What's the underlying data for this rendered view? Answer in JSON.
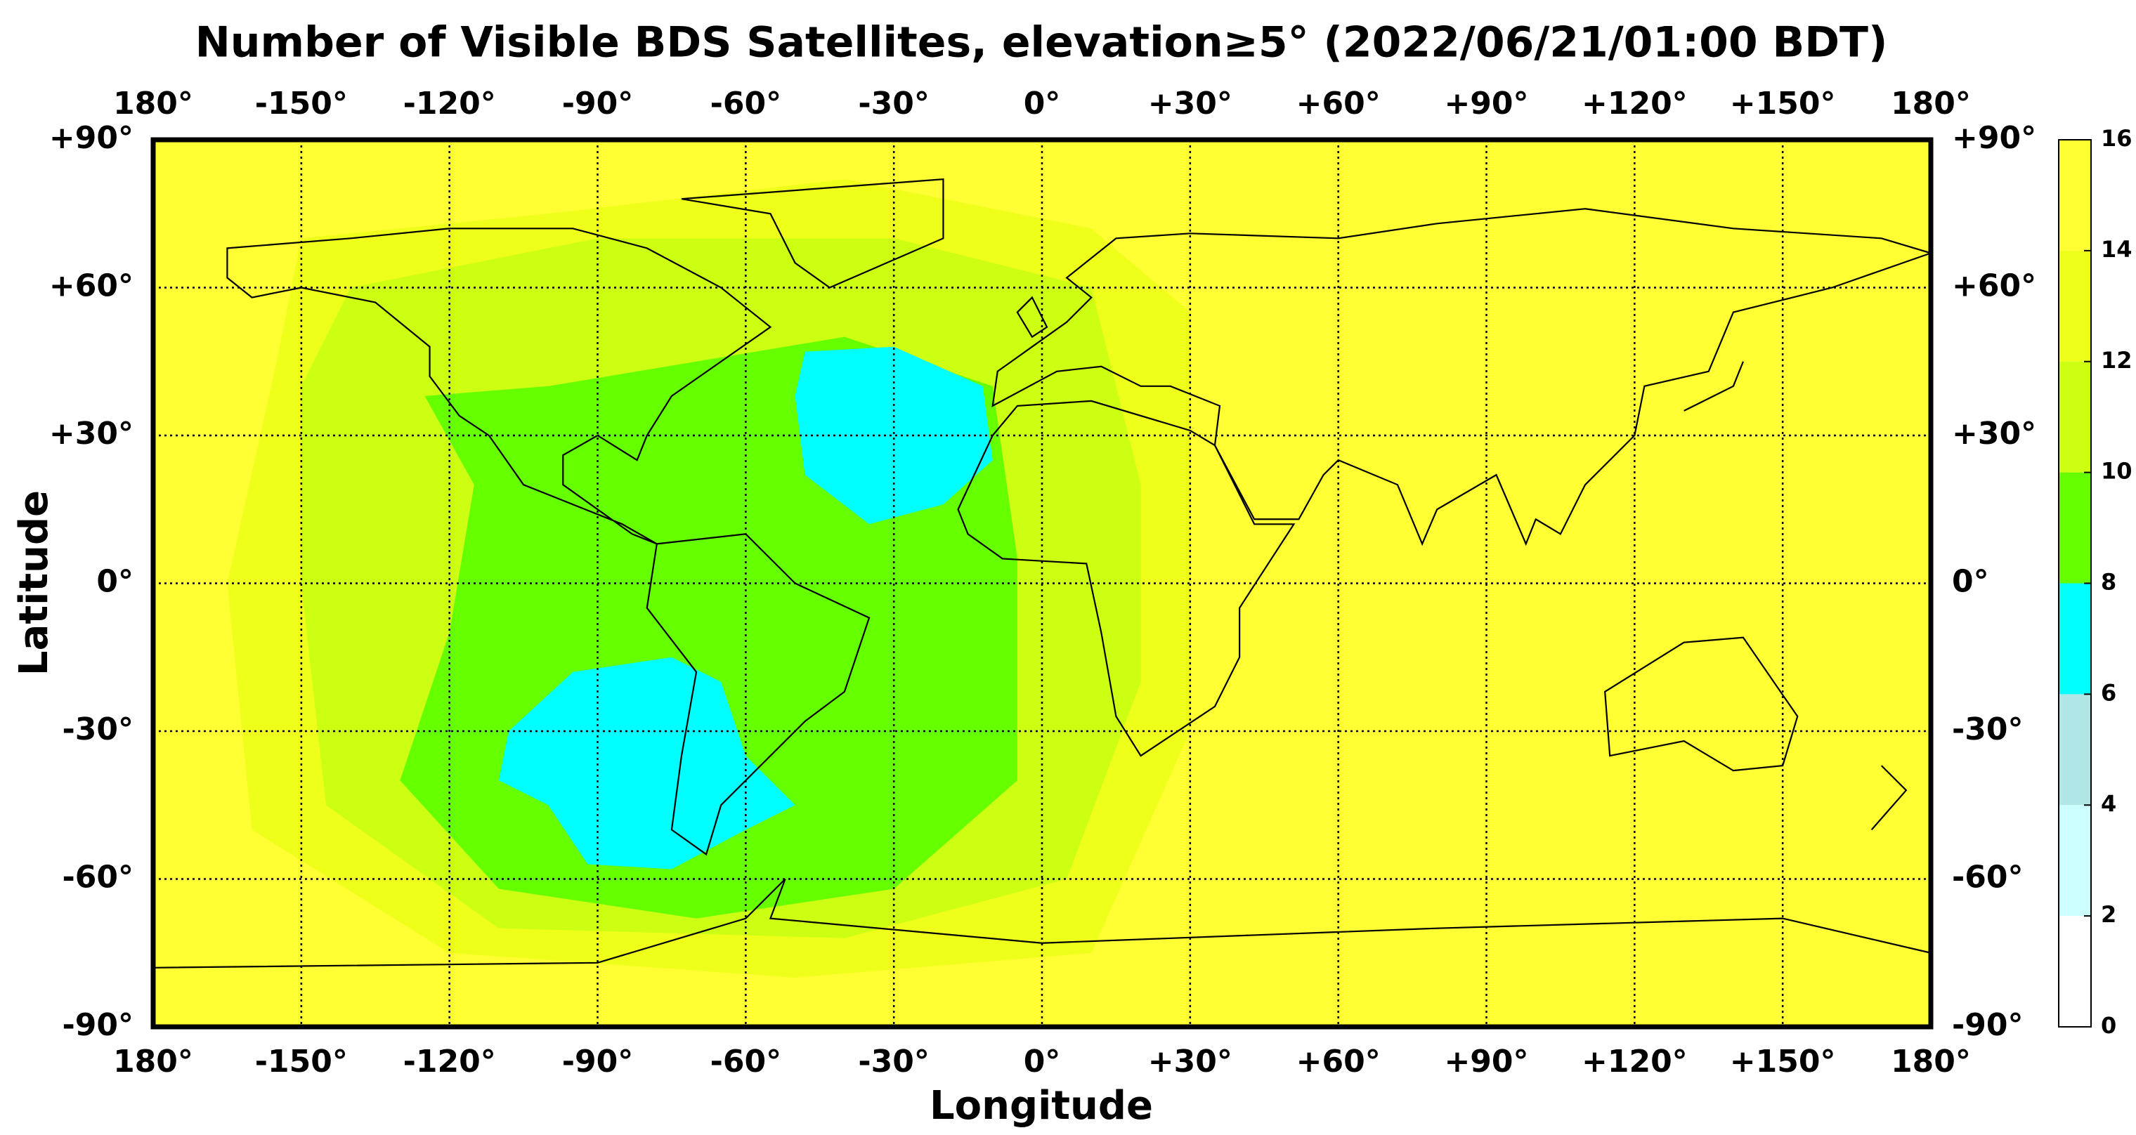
{
  "chart_data": {
    "type": "map",
    "title": "Number of Visible BDS Satellites, elevation≥5° (2022/06/21/01:00 BDT)",
    "x_label": "Longitude",
    "y_label": "Latitude",
    "xlim": [
      -180,
      180
    ],
    "ylim": [
      -90,
      90
    ],
    "xticks": [
      {
        "value": -180,
        "label": "180°"
      },
      {
        "value": -150,
        "label": "-150°"
      },
      {
        "value": -120,
        "label": "-120°"
      },
      {
        "value": -90,
        "label": "-90°"
      },
      {
        "value": -60,
        "label": "-60°"
      },
      {
        "value": -30,
        "label": "-30°"
      },
      {
        "value": 0,
        "label": "0°"
      },
      {
        "value": 30,
        "label": "+30°"
      },
      {
        "value": 60,
        "label": "+60°"
      },
      {
        "value": 90,
        "label": "+90°"
      },
      {
        "value": 120,
        "label": "+120°"
      },
      {
        "value": 150,
        "label": "+150°"
      },
      {
        "value": 180,
        "label": "180°"
      }
    ],
    "yticks": [
      {
        "value": 90,
        "label": "+90°"
      },
      {
        "value": 60,
        "label": "+60°"
      },
      {
        "value": 30,
        "label": "+30°"
      },
      {
        "value": 0,
        "label": "0°"
      },
      {
        "value": -30,
        "label": "-30°"
      },
      {
        "value": -60,
        "label": "-60°"
      },
      {
        "value": -90,
        "label": "-90°"
      }
    ],
    "grid": true,
    "colorbar": {
      "ticks": [
        0,
        2,
        4,
        6,
        8,
        10,
        12,
        14,
        16
      ],
      "colors": [
        "#ffffff",
        "#ccffff",
        "#b0e6e6",
        "#00ffff",
        "#66ff00",
        "#ccff11",
        "#eeff1a",
        "#ffff33"
      ]
    },
    "zones": [
      {
        "value": 15,
        "lon": [
          -180,
          180,
          180,
          -180
        ],
        "lat": [
          90,
          90,
          -90,
          -90
        ]
      },
      {
        "value": 13,
        "lon": [
          -150,
          -100,
          -40,
          10,
          30,
          30,
          10,
          -50,
          -120,
          -160,
          -165,
          -155
        ],
        "lat": [
          70,
          75,
          82,
          72,
          55,
          -30,
          -75,
          -80,
          -75,
          -50,
          0,
          45
        ]
      },
      {
        "value": 11,
        "lon": [
          -140,
          -90,
          -30,
          10,
          20,
          20,
          5,
          -40,
          -110,
          -145,
          -150,
          -150
        ],
        "lat": [
          60,
          70,
          70,
          60,
          20,
          -20,
          -60,
          -72,
          -70,
          -45,
          0,
          40
        ]
      },
      {
        "value": 9,
        "lon": [
          -125,
          -100,
          -70,
          -40,
          -10,
          -5,
          -5,
          -30,
          -70,
          -110,
          -130,
          -120,
          -115
        ],
        "lat": [
          38,
          40,
          45,
          50,
          40,
          5,
          -40,
          -62,
          -68,
          -62,
          -40,
          -10,
          20
        ]
      },
      {
        "value": 7,
        "lon": [
          -48,
          -30,
          -12,
          -10,
          -20,
          -35,
          -48,
          -50
        ],
        "lat": [
          47,
          48,
          40,
          25,
          16,
          12,
          22,
          38
        ]
      },
      {
        "value": 7,
        "lon": [
          -95,
          -75,
          -65,
          -60,
          -50,
          -60,
          -75,
          -92,
          -100,
          -110,
          -108
        ],
        "lat": [
          -18,
          -15,
          -20,
          -35,
          -45,
          -50,
          -58,
          -57,
          -45,
          -40,
          -30
        ]
      }
    ]
  }
}
